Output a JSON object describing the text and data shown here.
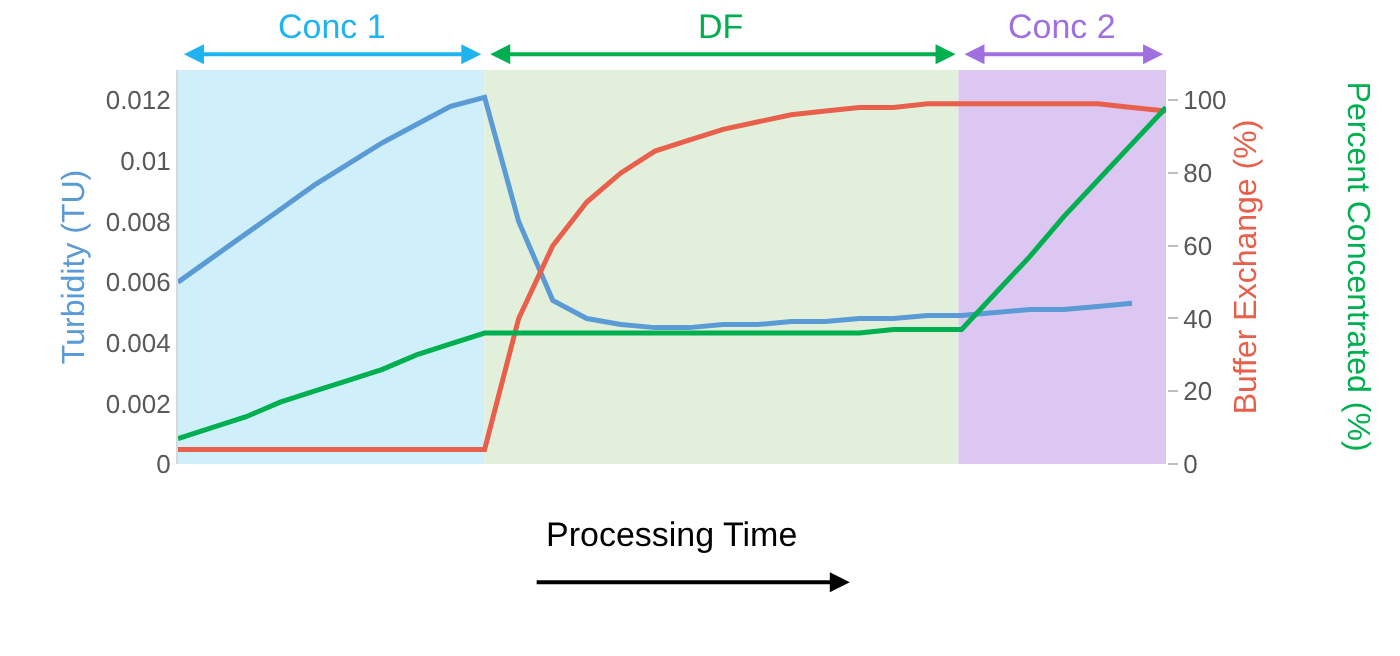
{
  "chart_data": {
    "type": "line",
    "categories": [
      null,
      null,
      null,
      null,
      null,
      null,
      null,
      null,
      null,
      null,
      null,
      null,
      null,
      null,
      null,
      null,
      null,
      null,
      null,
      null,
      null,
      null,
      null,
      null,
      null,
      null,
      null,
      null,
      null,
      null
    ],
    "series": [
      {
        "color": "#5b9bd5",
        "values": [
          0.006,
          0.0068,
          0.0076,
          0.0084,
          0.0092,
          0.0099,
          0.0106,
          0.0112,
          0.0118,
          0.0121,
          0.008,
          0.0054,
          0.0048,
          0.0046,
          0.0045,
          0.0045,
          0.0046,
          0.0046,
          0.0047,
          0.0047,
          0.0048,
          0.0048,
          0.0049,
          0.0049,
          0.005,
          0.0051,
          0.0051,
          0.0052,
          0.0053,
          null
        ]
      },
      {
        "color": "#e8604c",
        "axis": "y2",
        "values": [
          4,
          4,
          4,
          4,
          4,
          4,
          4,
          4,
          4,
          4,
          40,
          60,
          72,
          80,
          86,
          89,
          92,
          94,
          96,
          97,
          98,
          98,
          99,
          99,
          99,
          99,
          99,
          99,
          98,
          97
        ]
      },
      {
        "color": "#00b050",
        "axis": "y2",
        "values": [
          7,
          10,
          13,
          17,
          20,
          23,
          26,
          30,
          33,
          36,
          36,
          36,
          36,
          36,
          36,
          36,
          36,
          36,
          36,
          36,
          36,
          37,
          37,
          37,
          47,
          57,
          68,
          78,
          88,
          98
        ]
      }
    ],
    "ylabel": "Turbidity (TU)",
    "y2label": "Buffer Exchange (%)",
    "xlabel": "Processing Time",
    "annotations": [
      "Conc 1",
      "DF",
      "Conc 2",
      "Percent Concentrated (%)"
    ],
    "ylim": [
      0,
      0.013
    ],
    "yticks": [
      0,
      0.002,
      0.004,
      0.006,
      0.008,
      0.01,
      0.012
    ],
    "y2lim": [
      0,
      108.3
    ],
    "y2ticks": [
      0,
      20,
      40,
      60,
      80,
      100
    ],
    "tick_labels": "y",
    "grid": false,
    "marker": "none",
    "line_style": "solid"
  }
}
